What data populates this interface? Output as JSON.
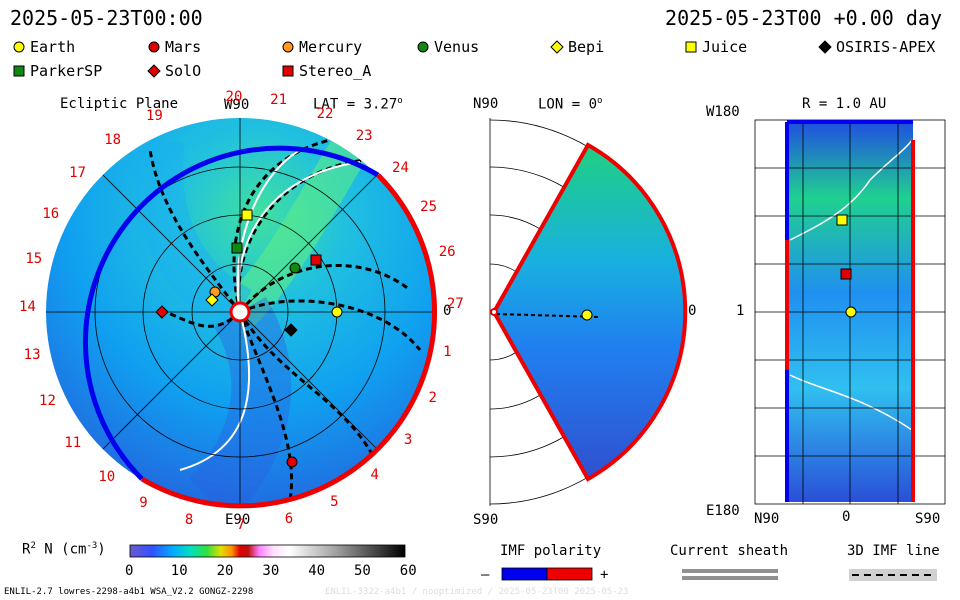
{
  "header": {
    "datetime": "2025-05-23T00:00",
    "offset": "2025-05-23T00 +0.00 day"
  },
  "legend": [
    {
      "name": "Earth",
      "shape": "circle",
      "color": "#ffff00"
    },
    {
      "name": "Mars",
      "shape": "circle",
      "color": "#e00000"
    },
    {
      "name": "Mercury",
      "shape": "circle",
      "color": "#ff9922"
    },
    {
      "name": "Venus",
      "shape": "circle",
      "color": "#118811"
    },
    {
      "name": "Bepi",
      "shape": "diamond",
      "color": "#ffff00"
    },
    {
      "name": "Juice",
      "shape": "square",
      "color": "#ffff00"
    },
    {
      "name": "OSIRIS-APEX",
      "shape": "diamond",
      "color": "#000000"
    },
    {
      "name": "ParkerSP",
      "shape": "square",
      "color": "#118811"
    },
    {
      "name": "SolO",
      "shape": "diamond",
      "color": "#e00000"
    },
    {
      "name": "Stereo_A",
      "shape": "square",
      "color": "#e00000"
    }
  ],
  "panels": {
    "ecliptic": {
      "title": "Ecliptic Plane",
      "lat": "LAT = 3.27",
      "deg": "o",
      "top_label": "W90",
      "bottom_label": "E90",
      "right_label": "0",
      "carrington": [
        "20",
        "21",
        "22",
        "23",
        "24",
        "25",
        "26",
        "27",
        "1",
        "2",
        "3",
        "4",
        "5",
        "6",
        "7",
        "8",
        "9",
        "10",
        "11",
        "12",
        "13",
        "14",
        "15",
        "16",
        "17",
        "18",
        "19"
      ]
    },
    "meridional": {
      "n_label": "N90",
      "s_label": "S90",
      "lon": "LON = 0",
      "deg": "o",
      "right_label": "0"
    },
    "radial": {
      "title": "R = 1.0 AU",
      "top_left": "W180",
      "mid_left": "1",
      "bottom_left": "E180",
      "bottom_n": "N90",
      "bottom_zero": "0",
      "bottom_s": "S90"
    }
  },
  "colorbar": {
    "label_prefix": "R",
    "label_exp": "2",
    "label_mid": " N (cm",
    "label_exp2": "-3",
    "label_suffix": ")",
    "ticks": [
      "0",
      "10",
      "20",
      "30",
      "40",
      "50",
      "60"
    ],
    "range": [
      0,
      60
    ]
  },
  "imf": {
    "title": "IMF polarity",
    "minus": "–",
    "plus": "+",
    "colors": {
      "negative": "#0000ee",
      "positive": "#ee0000"
    }
  },
  "sheath": {
    "title": "Current sheath"
  },
  "imf3d": {
    "title": "3D IMF line"
  },
  "footer": {
    "left": "ENLIL-2.7 lowres-2298-a4b1 WSA_V2.2 GONGZ-2298",
    "right": "ENLIL-3322-a4b1 / nooptimized / 2025-05-23T00     2025-05-23"
  },
  "chart_data": [
    {
      "type": "heatmap",
      "title": "Ecliptic Plane",
      "variable": "R2 N (cm-3)",
      "range": [
        0,
        60
      ],
      "bodies": [
        {
          "name": "Earth"
        },
        {
          "name": "Mars"
        },
        {
          "name": "Mercury"
        },
        {
          "name": "Venus"
        },
        {
          "name": "Bepi"
        },
        {
          "name": "Juice"
        },
        {
          "name": "OSIRIS-APEX"
        },
        {
          "name": "ParkerSP"
        },
        {
          "name": "SolO"
        },
        {
          "name": "Stereo_A"
        }
      ]
    },
    {
      "type": "heatmap",
      "title": "LON = 0",
      "bodies": [
        {
          "name": "Earth"
        }
      ]
    },
    {
      "type": "heatmap",
      "title": "R = 1.0 AU",
      "bodies": [
        {
          "name": "Earth"
        },
        {
          "name": "Juice"
        },
        {
          "name": "Stereo_A"
        }
      ]
    }
  ]
}
